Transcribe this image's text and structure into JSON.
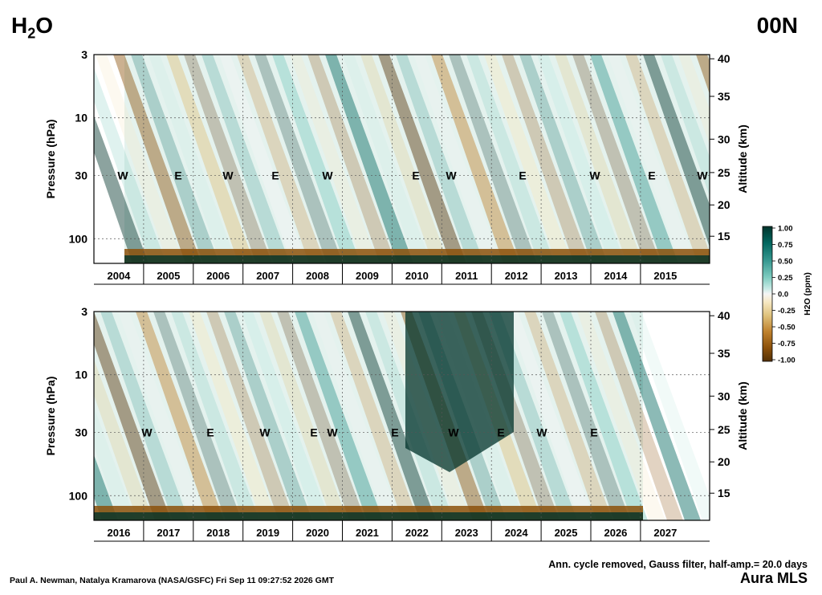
{
  "header": {
    "species_main": "H",
    "species_sub": "2",
    "species_tail": "O",
    "latitude": "00N"
  },
  "footer": {
    "processing_note": "Ann. cycle removed, Gauss filter, half-amp.= 20.0 days",
    "credit": "Paul A. Newman, Natalya Kramarova (NASA/GSFC) Fri Sep 11 09:27:52 2026 GMT",
    "instrument": "Aura MLS"
  },
  "chart_data": [
    {
      "type": "heatmap",
      "title": "",
      "xlabel": "",
      "ylabel": "Pressure (hPa)",
      "y2label": "Altitude (km)",
      "y_scale": "log",
      "y_reversed": true,
      "ylim": [
        160,
        3
      ],
      "pressure_ticks": [
        "3",
        "10",
        "30",
        "100"
      ],
      "altitude_ticks": [
        "15",
        "20",
        "25",
        "30",
        "35",
        "40"
      ],
      "year_labels": [
        "2004",
        "2005",
        "2006",
        "2007",
        "2008",
        "2009",
        "2010",
        "2011",
        "2012",
        "2013",
        "2014",
        "2015"
      ],
      "data_range": [
        "2004-08",
        "2015-12"
      ],
      "qbo_phase_labels": [
        "W",
        "E",
        "W",
        "E",
        "W",
        "E",
        "W",
        "E",
        "W",
        "E",
        "W"
      ],
      "colorbar_units": "H2O (ppm)",
      "grid": true
    },
    {
      "type": "heatmap",
      "title": "",
      "xlabel": "",
      "ylabel": "Pressure (hPa)",
      "y2label": "Altitude (km)",
      "y_scale": "log",
      "y_reversed": true,
      "ylim": [
        160,
        3
      ],
      "pressure_ticks": [
        "3",
        "10",
        "30",
        "100"
      ],
      "altitude_ticks": [
        "15",
        "20",
        "25",
        "30",
        "35",
        "40"
      ],
      "year_labels": [
        "2016",
        "2017",
        "2018",
        "2019",
        "2020",
        "2021",
        "2022",
        "2023",
        "2024",
        "2025",
        "2026",
        "2027"
      ],
      "data_range": [
        "2016-01",
        "2026-09"
      ],
      "qbo_phase_labels": [
        "W",
        "E",
        "W",
        "E",
        "W",
        "E",
        "W",
        "E",
        "W",
        "E"
      ],
      "colorbar_units": "H2O (ppm)",
      "grid": true
    }
  ],
  "colorbar": {
    "label": "H2O (ppm)",
    "tick_labels": [
      "1.00",
      "0.75",
      "0.50",
      "0.25",
      "0.0",
      "-0.25",
      "-0.50",
      "-0.75",
      "-1.00"
    ],
    "colors": [
      "#01332b",
      "#01665e",
      "#35978f",
      "#80cdc1",
      "#c7eae5",
      "#f5f5f5",
      "#f6e8c3",
      "#dfc27d",
      "#bf812d",
      "#8c510a",
      "#543005"
    ]
  }
}
